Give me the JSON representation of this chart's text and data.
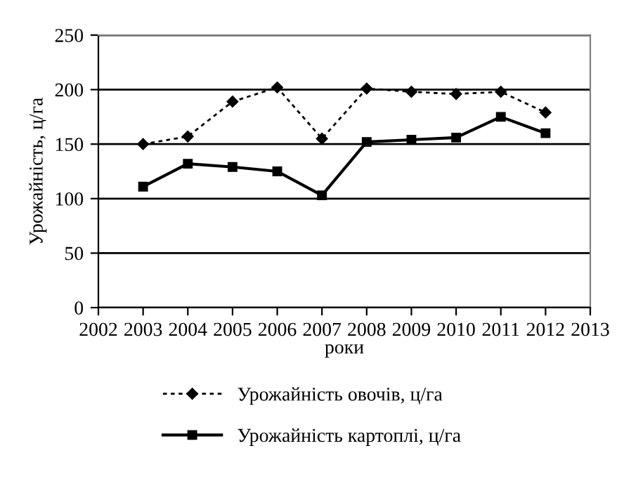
{
  "chart_data": {
    "type": "line",
    "xlabel": "роки",
    "ylabel": "Урожайність, ц/га",
    "x": [
      2003,
      2004,
      2005,
      2006,
      2007,
      2008,
      2009,
      2010,
      2011,
      2012
    ],
    "series": [
      {
        "name": "Урожайність овочів, ц/га",
        "color": "#000000",
        "values": [
          150,
          157,
          189,
          202,
          155,
          201,
          198,
          196,
          198,
          179
        ],
        "line_style": "dotted",
        "marker": "diamond"
      },
      {
        "name": "Урожайність картоплі, ц/га",
        "color": "#000000",
        "values": [
          111,
          132,
          129,
          125,
          103,
          152,
          154,
          156,
          175,
          160
        ],
        "line_style": "solid",
        "marker": "square"
      }
    ],
    "xlim": [
      2002,
      2013
    ],
    "xticks": [
      2002,
      2003,
      2004,
      2005,
      2006,
      2007,
      2008,
      2009,
      2010,
      2011,
      2012,
      2013
    ],
    "ylim": [
      0,
      250
    ],
    "yticks": [
      0,
      50,
      100,
      150,
      200,
      250
    ],
    "grid": "y",
    "legend": "bottom"
  }
}
